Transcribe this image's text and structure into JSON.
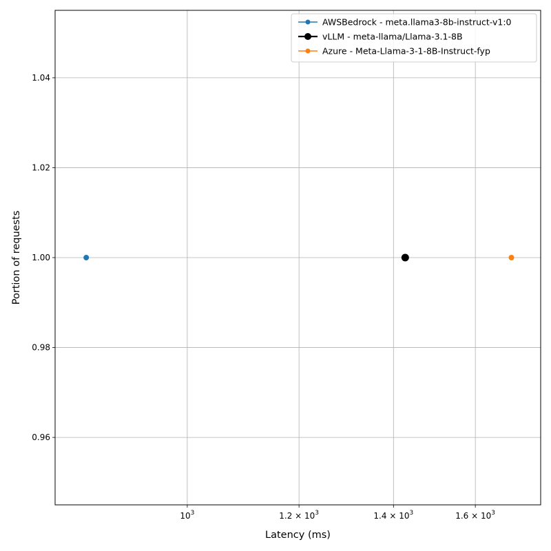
{
  "chart_data": {
    "type": "scatter",
    "xlabel": "Latency (ms)",
    "ylabel": "Portion of requests",
    "xscale": "log",
    "xlim": [
      806,
      1780
    ],
    "ylim": [
      0.945,
      1.055
    ],
    "grid": true,
    "legend_position": "top-right",
    "x_ticks": [
      {
        "value": 1000,
        "mantissa": "",
        "exponent": "3"
      },
      {
        "value": 1200,
        "mantissa": "1.2",
        "exponent": "3"
      },
      {
        "value": 1400,
        "mantissa": "1.4",
        "exponent": "3"
      },
      {
        "value": 1600,
        "mantissa": "1.6",
        "exponent": "3"
      }
    ],
    "y_ticks": [
      {
        "value": 0.96,
        "label": "0.96"
      },
      {
        "value": 0.98,
        "label": "0.98"
      },
      {
        "value": 1.0,
        "label": "1.00"
      },
      {
        "value": 1.02,
        "label": "1.02"
      },
      {
        "value": 1.04,
        "label": "1.04"
      }
    ],
    "series": [
      {
        "name": "AWSBedrock - meta.llama3-8b-instruct-v1:0",
        "color": "#1f77b4",
        "marker": "small",
        "points": [
          [
            848,
            1.0
          ]
        ]
      },
      {
        "name": "vLLM - meta-llama/Llama-3.1-8B",
        "color": "#000000",
        "marker": "large",
        "points": [
          [
            1427,
            1.0
          ]
        ]
      },
      {
        "name": "Azure - Meta-Llama-3-1-8B-Instruct-fyp",
        "color": "#ff7f0e",
        "marker": "small",
        "points": [
          [
            1697,
            1.0
          ]
        ]
      }
    ]
  }
}
